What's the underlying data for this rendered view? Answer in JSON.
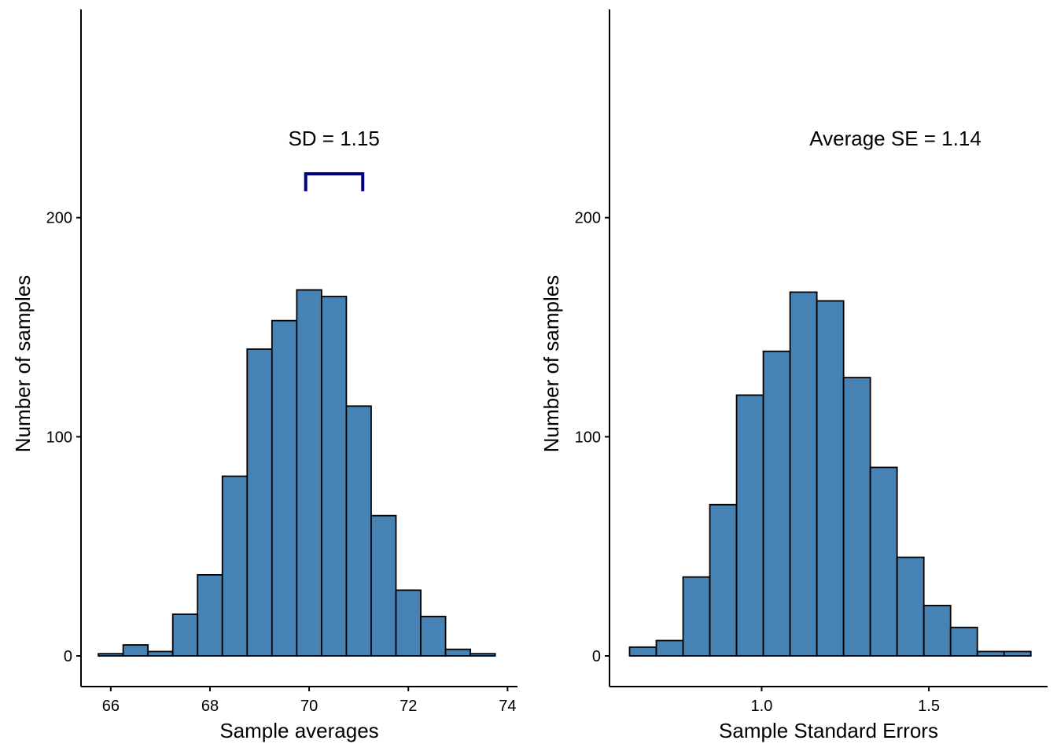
{
  "chart_data": [
    {
      "type": "bar",
      "subtype": "histogram",
      "xlabel": "Sample averages",
      "ylabel": "Number of samples",
      "xlim": [
        65.4,
        74.2
      ],
      "ylim": [
        -14,
        295
      ],
      "xticks": [
        66,
        68,
        70,
        72,
        74
      ],
      "xtick_labels": [
        "66",
        "68",
        "70",
        "72",
        "74"
      ],
      "yticks": [
        0,
        100,
        200
      ],
      "ytick_labels": [
        "0",
        "100",
        "200"
      ],
      "bin_width": 0.5,
      "bins": [
        {
          "x0": 65.75,
          "x1": 66.25,
          "count": 1
        },
        {
          "x0": 66.25,
          "x1": 66.75,
          "count": 5
        },
        {
          "x0": 66.75,
          "x1": 67.25,
          "count": 2
        },
        {
          "x0": 67.25,
          "x1": 67.75,
          "count": 19
        },
        {
          "x0": 67.75,
          "x1": 68.25,
          "count": 37
        },
        {
          "x0": 68.25,
          "x1": 68.75,
          "count": 82
        },
        {
          "x0": 68.75,
          "x1": 69.25,
          "count": 140
        },
        {
          "x0": 69.25,
          "x1": 69.75,
          "count": 153
        },
        {
          "x0": 69.75,
          "x1": 70.25,
          "count": 167
        },
        {
          "x0": 70.25,
          "x1": 70.75,
          "count": 164
        },
        {
          "x0": 70.75,
          "x1": 71.25,
          "count": 114
        },
        {
          "x0": 71.25,
          "x1": 71.75,
          "count": 64
        },
        {
          "x0": 71.75,
          "x1": 72.25,
          "count": 30
        },
        {
          "x0": 72.25,
          "x1": 72.75,
          "count": 18
        },
        {
          "x0": 72.75,
          "x1": 73.25,
          "count": 3
        },
        {
          "x0": 73.25,
          "x1": 73.75,
          "count": 1
        }
      ],
      "fill_color": "#4682B4",
      "edge_color": "#000000",
      "annotation": {
        "text": "SD = 1.15",
        "x": 70.5,
        "y": 233
      },
      "bracket": {
        "x0": 69.93,
        "x1": 71.08,
        "y": 220,
        "tick_bottom": 212,
        "color": "#00008B"
      }
    },
    {
      "type": "bar",
      "subtype": "histogram",
      "xlabel": "Sample Standard Errors",
      "ylabel": "Number of samples",
      "xlim": [
        0.545,
        1.855
      ],
      "ylim": [
        -14,
        295
      ],
      "xticks": [
        1.0,
        1.5
      ],
      "xtick_labels": [
        "1.0",
        "1.5"
      ],
      "yticks": [
        0,
        100,
        200
      ],
      "yticks_labels_note": "",
      "ytick_labels": [
        "0",
        "100",
        "200"
      ],
      "bin_width": 0.08,
      "bins": [
        {
          "x0": 0.605,
          "x1": 0.685,
          "count": 4
        },
        {
          "x0": 0.685,
          "x1": 0.765,
          "count": 7
        },
        {
          "x0": 0.765,
          "x1": 0.845,
          "count": 36
        },
        {
          "x0": 0.845,
          "x1": 0.925,
          "count": 69
        },
        {
          "x0": 0.925,
          "x1": 1.005,
          "count": 119
        },
        {
          "x0": 1.005,
          "x1": 1.085,
          "count": 139
        },
        {
          "x0": 1.085,
          "x1": 1.165,
          "count": 166
        },
        {
          "x0": 1.165,
          "x1": 1.245,
          "count": 162
        },
        {
          "x0": 1.245,
          "x1": 1.325,
          "count": 127
        },
        {
          "x0": 1.325,
          "x1": 1.405,
          "count": 86
        },
        {
          "x0": 1.405,
          "x1": 1.485,
          "count": 45
        },
        {
          "x0": 1.485,
          "x1": 1.565,
          "count": 23
        },
        {
          "x0": 1.565,
          "x1": 1.645,
          "count": 13
        },
        {
          "x0": 1.645,
          "x1": 1.725,
          "count": 2
        },
        {
          "x0": 1.725,
          "x1": 1.805,
          "count": 2
        }
      ],
      "fill_color": "#4682B4",
      "edge_color": "#000000",
      "annotation": {
        "text": "Average SE = 1.14",
        "x": 1.4,
        "y": 233
      }
    }
  ]
}
